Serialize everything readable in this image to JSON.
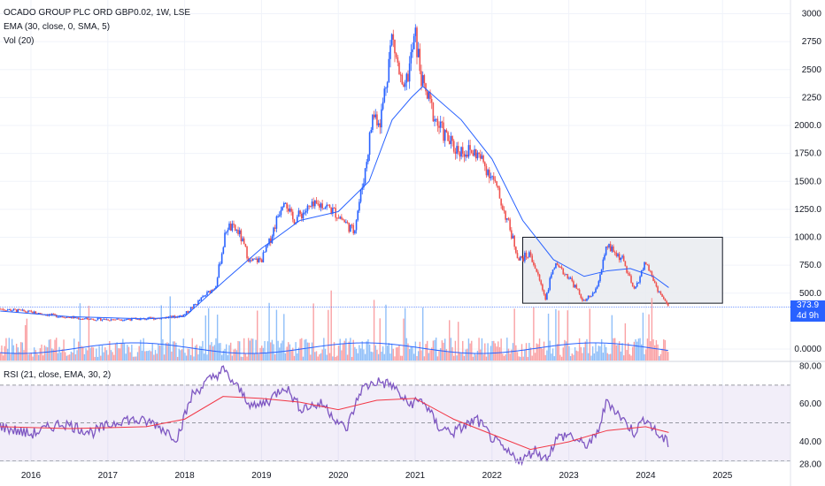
{
  "legend": {
    "symbol": "OCADO GROUP PLC ORD GBP0.02, 1W, LSE",
    "ema": "EMA (30, close, 0, SMA, 5)",
    "vol": "Vol (20)",
    "rsi": "RSI (21, close, EMA, 30, 2)"
  },
  "price_tag": {
    "value": "373.9",
    "countdown": "4d 9h"
  },
  "colors": {
    "up": "#2962ff",
    "down": "#ef5350",
    "ema": "#2962ff",
    "rsi": "#7e57c2",
    "rsi_ma": "#f23645",
    "box": "#e9ebf0"
  },
  "chart_data": [
    {
      "type": "candlestick",
      "title": "OCADO GROUP PLC ORD GBP0.02, 1W, LSE",
      "x_ticks": [
        "2016",
        "2017",
        "2018",
        "2019",
        "2020",
        "2021",
        "2022",
        "2023",
        "2024",
        "2025"
      ],
      "y_ticks": [
        "3000",
        "2750",
        "2500",
        "2250",
        "2000.0",
        "1750.0",
        "1500.0",
        "1250.0",
        "1000.0",
        "750.0",
        "500.0",
        "0.0000"
      ],
      "ylim": [
        0,
        3000
      ],
      "last_price": 373.9,
      "close_path": [
        {
          "x": 2015.6,
          "y": 360
        },
        {
          "x": 2016.0,
          "y": 330
        },
        {
          "x": 2016.3,
          "y": 300
        },
        {
          "x": 2016.7,
          "y": 270
        },
        {
          "x": 2017.0,
          "y": 265
        },
        {
          "x": 2017.5,
          "y": 270
        },
        {
          "x": 2017.9,
          "y": 290
        },
        {
          "x": 2018.0,
          "y": 310
        },
        {
          "x": 2018.25,
          "y": 470
        },
        {
          "x": 2018.4,
          "y": 560
        },
        {
          "x": 2018.55,
          "y": 1100
        },
        {
          "x": 2018.7,
          "y": 1050
        },
        {
          "x": 2018.85,
          "y": 780
        },
        {
          "x": 2019.0,
          "y": 800
        },
        {
          "x": 2019.1,
          "y": 950
        },
        {
          "x": 2019.3,
          "y": 1380
        },
        {
          "x": 2019.4,
          "y": 1150
        },
        {
          "x": 2019.6,
          "y": 1250
        },
        {
          "x": 2019.8,
          "y": 1300
        },
        {
          "x": 2020.0,
          "y": 1200
        },
        {
          "x": 2020.2,
          "y": 1050
        },
        {
          "x": 2020.35,
          "y": 1600
        },
        {
          "x": 2020.45,
          "y": 2100
        },
        {
          "x": 2020.55,
          "y": 2050
        },
        {
          "x": 2020.7,
          "y": 2800
        },
        {
          "x": 2020.85,
          "y": 2250
        },
        {
          "x": 2021.0,
          "y": 2800
        },
        {
          "x": 2021.1,
          "y": 2350
        },
        {
          "x": 2021.3,
          "y": 2000
        },
        {
          "x": 2021.5,
          "y": 1800
        },
        {
          "x": 2021.8,
          "y": 1750
        },
        {
          "x": 2022.0,
          "y": 1550
        },
        {
          "x": 2022.2,
          "y": 1150
        },
        {
          "x": 2022.35,
          "y": 800
        },
        {
          "x": 2022.5,
          "y": 850
        },
        {
          "x": 2022.7,
          "y": 450
        },
        {
          "x": 2022.8,
          "y": 750
        },
        {
          "x": 2023.0,
          "y": 650
        },
        {
          "x": 2023.2,
          "y": 420
        },
        {
          "x": 2023.35,
          "y": 520
        },
        {
          "x": 2023.5,
          "y": 920
        },
        {
          "x": 2023.7,
          "y": 800
        },
        {
          "x": 2023.85,
          "y": 520
        },
        {
          "x": 2024.0,
          "y": 780
        },
        {
          "x": 2024.15,
          "y": 540
        },
        {
          "x": 2024.3,
          "y": 373.9
        }
      ],
      "ema_path": [
        {
          "x": 2015.6,
          "y": 340
        },
        {
          "x": 2016.5,
          "y": 290
        },
        {
          "x": 2017.5,
          "y": 270
        },
        {
          "x": 2018.0,
          "y": 290
        },
        {
          "x": 2018.5,
          "y": 600
        },
        {
          "x": 2019.0,
          "y": 900
        },
        {
          "x": 2019.5,
          "y": 1150
        },
        {
          "x": 2020.0,
          "y": 1230
        },
        {
          "x": 2020.4,
          "y": 1500
        },
        {
          "x": 2020.7,
          "y": 2050
        },
        {
          "x": 2020.95,
          "y": 2250
        },
        {
          "x": 2021.1,
          "y": 2350
        },
        {
          "x": 2021.6,
          "y": 2050
        },
        {
          "x": 2022.0,
          "y": 1700
        },
        {
          "x": 2022.4,
          "y": 1150
        },
        {
          "x": 2022.8,
          "y": 800
        },
        {
          "x": 2023.2,
          "y": 650
        },
        {
          "x": 2023.5,
          "y": 700
        },
        {
          "x": 2023.8,
          "y": 720
        },
        {
          "x": 2024.1,
          "y": 650
        },
        {
          "x": 2024.3,
          "y": 550
        }
      ],
      "box": {
        "x_start": 2022.4,
        "x_end": 2025.0,
        "y_low": 410,
        "y_high": 1000
      }
    },
    {
      "type": "line",
      "title": "RSI (21, close, EMA, 30, 2)",
      "y_ticks": [
        "80.00",
        "60.00",
        "40.00",
        "28.00"
      ],
      "ylim": [
        26,
        82
      ],
      "levels": [
        70,
        50,
        30
      ],
      "rsi_path": [
        {
          "x": 2015.6,
          "y": 48
        },
        {
          "x": 2016.0,
          "y": 44
        },
        {
          "x": 2016.4,
          "y": 50
        },
        {
          "x": 2016.8,
          "y": 45
        },
        {
          "x": 2017.2,
          "y": 52
        },
        {
          "x": 2017.6,
          "y": 50
        },
        {
          "x": 2017.9,
          "y": 42
        },
        {
          "x": 2018.1,
          "y": 65
        },
        {
          "x": 2018.3,
          "y": 72
        },
        {
          "x": 2018.5,
          "y": 78
        },
        {
          "x": 2018.7,
          "y": 68
        },
        {
          "x": 2018.9,
          "y": 58
        },
        {
          "x": 2019.1,
          "y": 62
        },
        {
          "x": 2019.3,
          "y": 70
        },
        {
          "x": 2019.5,
          "y": 58
        },
        {
          "x": 2019.8,
          "y": 60
        },
        {
          "x": 2020.1,
          "y": 46
        },
        {
          "x": 2020.3,
          "y": 68
        },
        {
          "x": 2020.5,
          "y": 72
        },
        {
          "x": 2020.7,
          "y": 70
        },
        {
          "x": 2020.9,
          "y": 60
        },
        {
          "x": 2021.1,
          "y": 62
        },
        {
          "x": 2021.3,
          "y": 48
        },
        {
          "x": 2021.5,
          "y": 45
        },
        {
          "x": 2021.8,
          "y": 52
        },
        {
          "x": 2022.0,
          "y": 42
        },
        {
          "x": 2022.2,
          "y": 34
        },
        {
          "x": 2022.4,
          "y": 30
        },
        {
          "x": 2022.55,
          "y": 36
        },
        {
          "x": 2022.7,
          "y": 31
        },
        {
          "x": 2022.85,
          "y": 42
        },
        {
          "x": 2023.0,
          "y": 44
        },
        {
          "x": 2023.2,
          "y": 38
        },
        {
          "x": 2023.35,
          "y": 42
        },
        {
          "x": 2023.5,
          "y": 62
        },
        {
          "x": 2023.7,
          "y": 52
        },
        {
          "x": 2023.85,
          "y": 45
        },
        {
          "x": 2024.0,
          "y": 53
        },
        {
          "x": 2024.15,
          "y": 44
        },
        {
          "x": 2024.3,
          "y": 39
        }
      ],
      "rsi_ma_path": [
        {
          "x": 2015.6,
          "y": 48
        },
        {
          "x": 2016.5,
          "y": 47
        },
        {
          "x": 2017.5,
          "y": 48
        },
        {
          "x": 2018.0,
          "y": 52
        },
        {
          "x": 2018.5,
          "y": 64
        },
        {
          "x": 2019.0,
          "y": 63
        },
        {
          "x": 2019.5,
          "y": 61
        },
        {
          "x": 2020.0,
          "y": 57
        },
        {
          "x": 2020.5,
          "y": 62
        },
        {
          "x": 2021.0,
          "y": 63
        },
        {
          "x": 2021.5,
          "y": 52
        },
        {
          "x": 2022.0,
          "y": 44
        },
        {
          "x": 2022.5,
          "y": 36
        },
        {
          "x": 2023.0,
          "y": 40
        },
        {
          "x": 2023.5,
          "y": 46
        },
        {
          "x": 2024.0,
          "y": 48
        },
        {
          "x": 2024.3,
          "y": 45
        }
      ]
    }
  ]
}
